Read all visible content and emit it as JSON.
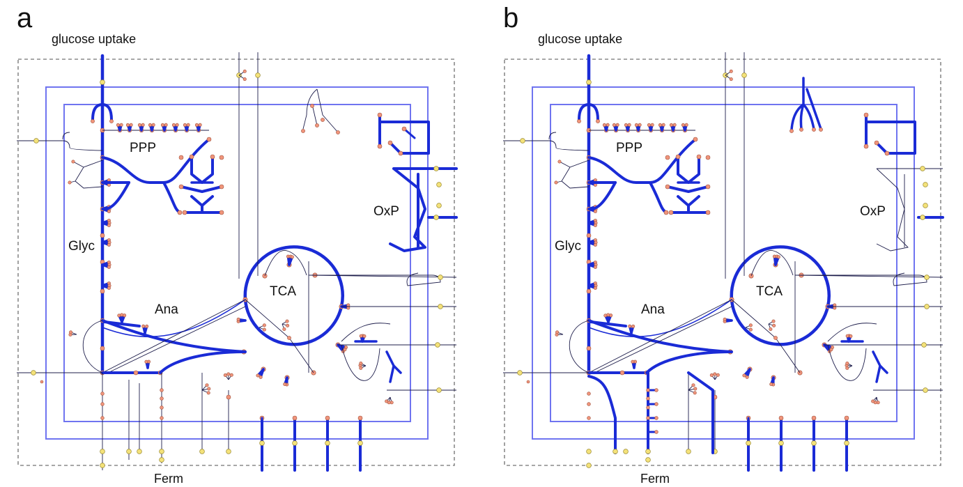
{
  "panels": [
    {
      "id": "a",
      "letter": "a",
      "top_label": "glucose uptake",
      "bottom_label": "Ferm",
      "regions": {
        "ppp": "PPP",
        "oxp": "OxP",
        "glyc": "Glyc",
        "tca": "TCA",
        "ana": "Ana"
      },
      "variant": "a"
    },
    {
      "id": "b",
      "letter": "b",
      "top_label": "glucose uptake",
      "bottom_label": "Ferm",
      "regions": {
        "ppp": "PPP",
        "oxp": "OxP",
        "glyc": "Glyc",
        "tca": "TCA",
        "ana": "Ana"
      },
      "variant": "b"
    }
  ],
  "colors": {
    "flux": "#1a2bd6",
    "thin_line": "#1c1c4a",
    "compartment": "#6f74f0",
    "outer_border": "#8a8a8a",
    "metabolite": "#f0957c",
    "metabolite_stroke": "#a0503a",
    "exchange_node": "#f4e27a",
    "exchange_stroke": "#9a8a30"
  }
}
